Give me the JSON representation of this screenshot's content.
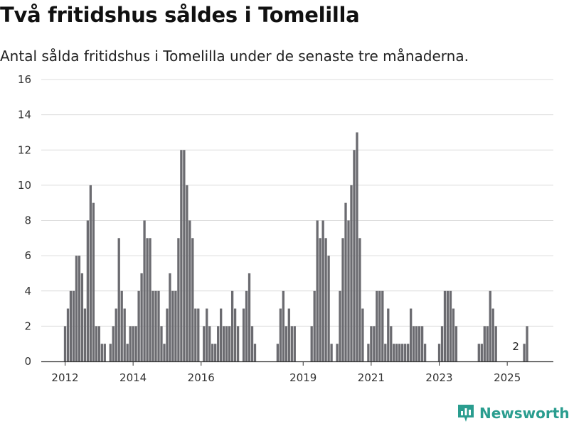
{
  "title": "Två fritidshus såldes i Tomelilla",
  "subtitle": "Antal sålda fritidshus i Tomelilla under de senaste tre månaderna.",
  "brand": {
    "name": "Newsworthy",
    "icon": "newsworthy-logo-icon"
  },
  "colors": {
    "bar": "#6b6b70",
    "highlight": "#1a9a94",
    "grid": "#dcdcdc",
    "axis": "#333333",
    "brand": "#2a9d8f"
  },
  "chart_data": {
    "type": "bar",
    "title": "Två fritidshus såldes i Tomelilla",
    "subtitle": "Antal sålda fritidshus i Tomelilla under de senaste tre månaderna.",
    "xlabel": "",
    "ylabel": "",
    "ylim": [
      0,
      16
    ],
    "yticks": [
      0,
      2,
      4,
      6,
      8,
      10,
      12,
      14,
      16
    ],
    "xticks": [
      {
        "label": "2012",
        "month": 0
      },
      {
        "label": "2014",
        "month": 24
      },
      {
        "label": "2016",
        "month": 48
      },
      {
        "label": "2019",
        "month": 84
      },
      {
        "label": "2021",
        "month": 108
      },
      {
        "label": "2023",
        "month": 132
      },
      {
        "label": "2025",
        "month": 156
      }
    ],
    "start_month_label": "2012-01",
    "values": [
      2,
      3,
      4,
      4,
      6,
      6,
      5,
      3,
      8,
      10,
      9,
      2,
      2,
      1,
      1,
      0,
      1,
      2,
      3,
      7,
      4,
      3,
      1,
      2,
      2,
      2,
      4,
      5,
      8,
      7,
      7,
      4,
      4,
      4,
      2,
      1,
      3,
      5,
      4,
      4,
      7,
      12,
      12,
      10,
      8,
      7,
      3,
      3,
      0,
      2,
      3,
      2,
      1,
      1,
      2,
      3,
      2,
      2,
      2,
      4,
      3,
      2,
      0,
      3,
      4,
      5,
      2,
      1,
      0,
      0,
      0,
      0,
      0,
      0,
      0,
      1,
      3,
      4,
      2,
      3,
      2,
      2,
      0,
      0,
      0,
      0,
      0,
      2,
      4,
      8,
      7,
      8,
      7,
      6,
      1,
      0,
      1,
      4,
      7,
      9,
      8,
      10,
      12,
      13,
      7,
      3,
      0,
      1,
      2,
      2,
      4,
      4,
      4,
      1,
      3,
      2,
      1,
      1,
      1,
      1,
      1,
      1,
      3,
      2,
      2,
      2,
      2,
      1,
      0,
      0,
      0,
      0,
      1,
      2,
      4,
      4,
      4,
      3,
      2,
      0,
      0,
      0,
      0,
      0,
      0,
      0,
      1,
      1,
      2,
      2,
      4,
      3,
      2,
      0,
      0,
      0,
      0,
      0,
      0,
      0,
      0,
      0,
      1,
      2
    ],
    "highlight_index": 159,
    "highlight_label": "2"
  }
}
